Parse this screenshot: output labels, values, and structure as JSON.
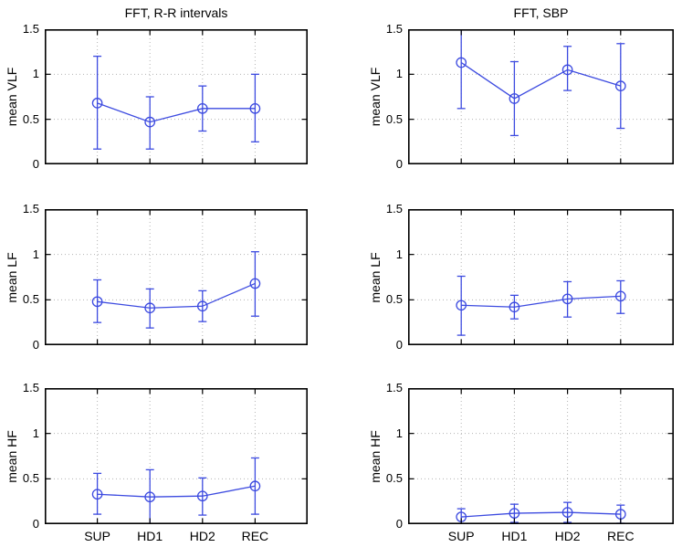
{
  "figure": {
    "background": "#ffffff",
    "line_color": "#3d4be0",
    "grid_color": "#b3b3b3",
    "axis_color": "#000000"
  },
  "titles": {
    "left_column": "FFT, R-R intervals",
    "right_column": "FFT, SBP"
  },
  "chart_data": [
    {
      "id": "rr-vlf",
      "type": "line",
      "title": "FFT, R-R intervals",
      "ylabel": "mean VLF",
      "show_title": true,
      "show_xlabels": false,
      "grid": "dotted",
      "marker": "circle",
      "categories": [
        "SUP",
        "HD1",
        "HD2",
        "REC"
      ],
      "ylim": [
        0,
        1.5
      ],
      "y_ticks": [
        0,
        0.5,
        1,
        1.5
      ],
      "y_tick_labels": [
        "0",
        "0.5",
        "1",
        "1.5"
      ],
      "series": [
        {
          "values": [
            0.68,
            0.47,
            0.62,
            0.62
          ],
          "err_upper": [
            1.2,
            0.75,
            0.87,
            1.0
          ],
          "err_lower": [
            0.17,
            0.17,
            0.37,
            0.25
          ]
        }
      ]
    },
    {
      "id": "sbp-vlf",
      "type": "line",
      "title": "FFT, SBP",
      "ylabel": "mean VLF",
      "show_title": true,
      "show_xlabels": false,
      "grid": "dotted",
      "marker": "circle",
      "categories": [
        "SUP",
        "HD1",
        "HD2",
        "REC"
      ],
      "ylim": [
        0,
        1.5
      ],
      "y_ticks": [
        0,
        0.5,
        1,
        1.5
      ],
      "y_tick_labels": [
        "0",
        "0.5",
        "1",
        "1.5"
      ],
      "series": [
        {
          "values": [
            1.13,
            0.73,
            1.05,
            0.87
          ],
          "err_upper": [
            1.62,
            1.14,
            1.31,
            1.34
          ],
          "err_lower": [
            0.62,
            0.32,
            0.82,
            0.4
          ]
        }
      ]
    },
    {
      "id": "rr-lf",
      "type": "line",
      "title": "",
      "ylabel": "mean LF",
      "show_title": false,
      "show_xlabels": false,
      "grid": "dotted",
      "marker": "circle",
      "categories": [
        "SUP",
        "HD1",
        "HD2",
        "REC"
      ],
      "ylim": [
        0,
        1.5
      ],
      "y_ticks": [
        0,
        0.5,
        1,
        1.5
      ],
      "y_tick_labels": [
        "0",
        "0.5",
        "1",
        "1.5"
      ],
      "series": [
        {
          "values": [
            0.48,
            0.41,
            0.43,
            0.68
          ],
          "err_upper": [
            0.72,
            0.62,
            0.6,
            1.03
          ],
          "err_lower": [
            0.25,
            0.19,
            0.26,
            0.32
          ]
        }
      ]
    },
    {
      "id": "sbp-lf",
      "type": "line",
      "title": "",
      "ylabel": "mean LF",
      "show_title": false,
      "show_xlabels": false,
      "grid": "dotted",
      "marker": "circle",
      "categories": [
        "SUP",
        "HD1",
        "HD2",
        "REC"
      ],
      "ylim": [
        0,
        1.5
      ],
      "y_ticks": [
        0,
        0.5,
        1,
        1.5
      ],
      "y_tick_labels": [
        "0",
        "0.5",
        "1",
        "1.5"
      ],
      "series": [
        {
          "values": [
            0.44,
            0.42,
            0.51,
            0.54
          ],
          "err_upper": [
            0.76,
            0.55,
            0.7,
            0.71
          ],
          "err_lower": [
            0.11,
            0.29,
            0.31,
            0.35
          ]
        }
      ]
    },
    {
      "id": "rr-hf",
      "type": "line",
      "title": "",
      "ylabel": "mean HF",
      "show_title": false,
      "show_xlabels": true,
      "grid": "dotted",
      "marker": "circle",
      "categories": [
        "SUP",
        "HD1",
        "HD2",
        "REC"
      ],
      "ylim": [
        0,
        1.5
      ],
      "y_ticks": [
        0,
        0.5,
        1,
        1.5
      ],
      "y_tick_labels": [
        "0",
        "0.5",
        "1",
        "1.5"
      ],
      "series": [
        {
          "values": [
            0.33,
            0.3,
            0.31,
            0.42
          ],
          "err_upper": [
            0.56,
            0.6,
            0.51,
            0.73
          ],
          "err_lower": [
            0.11,
            -0.03,
            0.1,
            0.11
          ]
        }
      ]
    },
    {
      "id": "sbp-hf",
      "type": "line",
      "title": "",
      "ylabel": "mean HF",
      "show_title": false,
      "show_xlabels": true,
      "grid": "dotted",
      "marker": "circle",
      "categories": [
        "SUP",
        "HD1",
        "HD2",
        "REC"
      ],
      "ylim": [
        0,
        1.5
      ],
      "y_ticks": [
        0,
        0.5,
        1,
        1.5
      ],
      "y_tick_labels": [
        "0",
        "0.5",
        "1",
        "1.5"
      ],
      "series": [
        {
          "values": [
            0.08,
            0.12,
            0.13,
            0.11
          ],
          "err_upper": [
            0.17,
            0.22,
            0.24,
            0.21
          ],
          "err_lower": [
            0.0,
            0.02,
            0.02,
            0.01
          ]
        }
      ]
    }
  ]
}
